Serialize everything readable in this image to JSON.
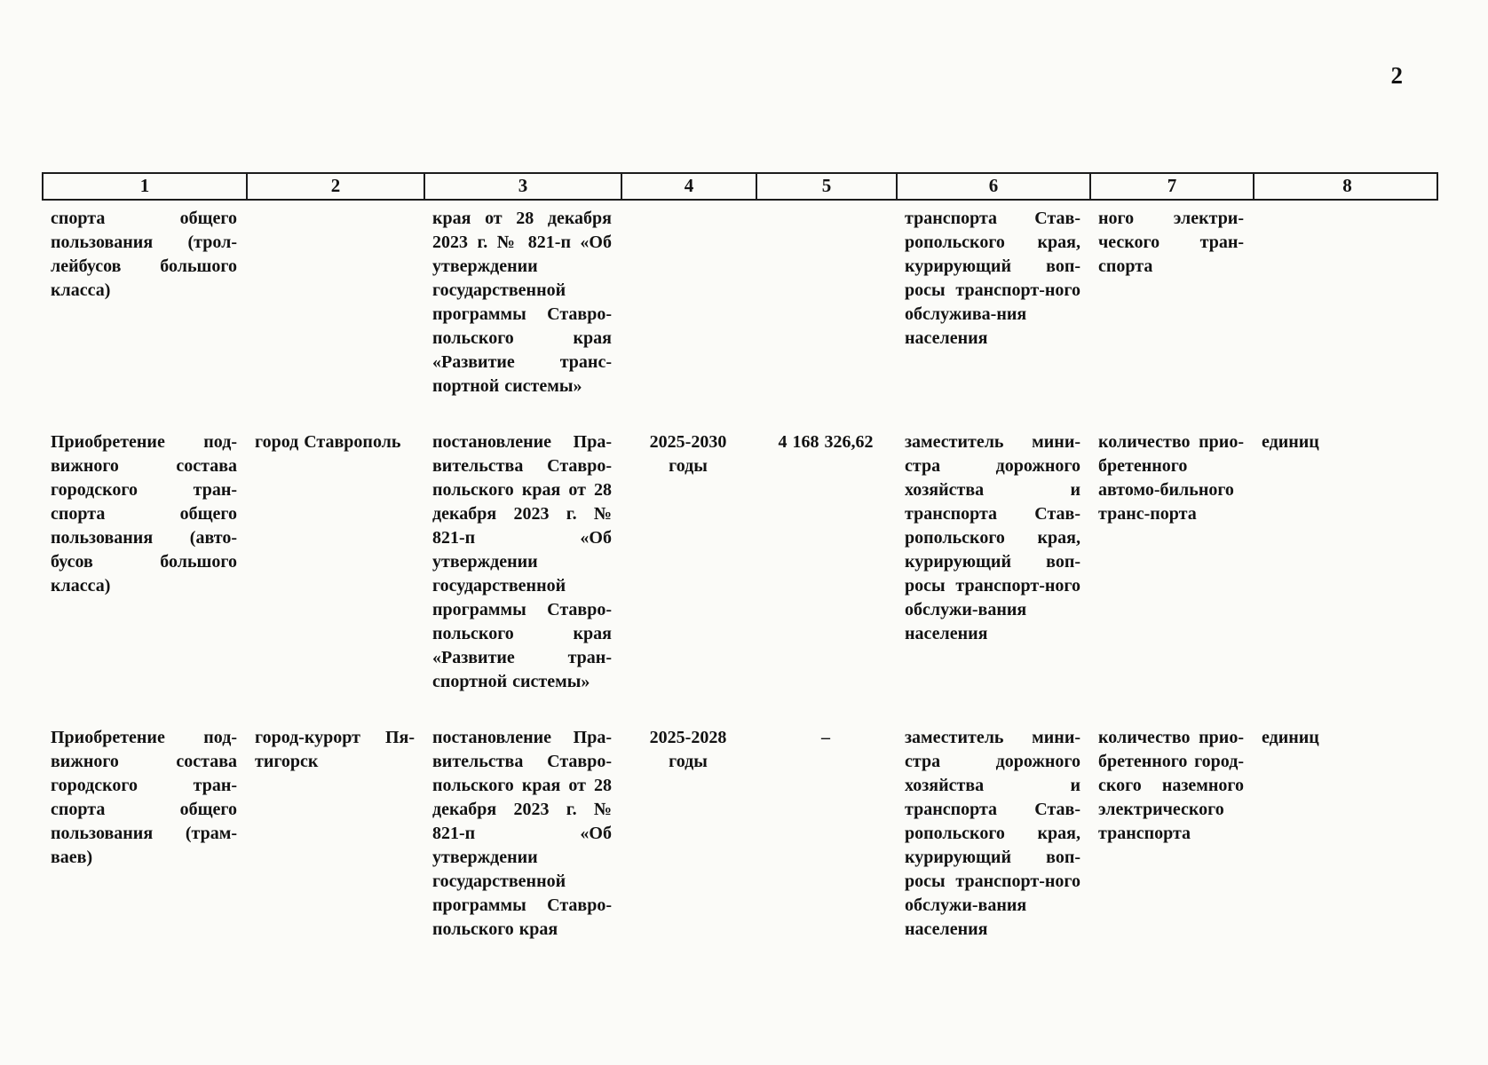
{
  "page_number": "2",
  "table": {
    "headers": [
      "1",
      "2",
      "3",
      "4",
      "5",
      "6",
      "7",
      "8"
    ],
    "rows": [
      {
        "cells": [
          "спорта общего пользования (трол-лейбусов большого класса)",
          "",
          "края от 28 декабря 2023 г. № 821-п «Об утверждении государственной программы Ставро-польского края «Развитие транс-портной системы»",
          "",
          "",
          "транспорта Став-ропольского края, курирующий воп-росы транспорт-ного обслужива-ния населения",
          "ного электри-ческого тран-спорта",
          ""
        ]
      },
      {
        "cells": [
          "Приобретение под-вижного состава городского тран-спорта общего пользования (авто-бусов большого класса)",
          "город Ставрополь",
          "постановление Пра-вительства Ставро-польского края от 28 декабря 2023 г. № 821-п «Об утверждении государственной программы Ставро-польского края «Развитие тран-спортной системы»",
          "2025-2030 годы",
          "4 168 326,62",
          "заместитель мини-стра дорожного хозяйства и транспорта Став-ропольского края, курирующий воп-росы транспорт-ного обслужи-вания населения",
          "количество прио-бретенного автомо-бильного транс-порта",
          "единиц"
        ]
      },
      {
        "cells": [
          "Приобретение под-вижного состава городского тран-спорта общего пользования (трам-ваев)",
          "город-курорт Пя-тигорск",
          "постановление Пра-вительства Ставро-польского края от 28 декабря 2023 г. № 821-п «Об утверждении государственной программы Ставро-польского края",
          "2025-2028 годы",
          "–",
          "заместитель мини-стра дорожного хозяйства и транспорта Став-ропольского края, курирующий воп-росы транспорт-ного обслужи-вания населения",
          "количество прио-бретенного город-ского наземного электрического транспорта",
          "единиц"
        ]
      }
    ]
  }
}
